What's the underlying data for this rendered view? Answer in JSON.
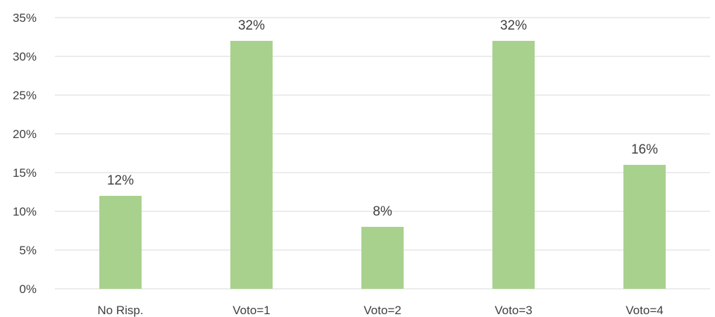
{
  "chart_data": {
    "type": "bar",
    "title": "",
    "xlabel": "",
    "ylabel": "",
    "categories": [
      "No Risp.",
      "Voto=1",
      "Voto=2",
      "Voto=3",
      "Voto=4"
    ],
    "values": [
      12,
      32,
      8,
      32,
      16
    ],
    "data_labels": [
      "12%",
      "32%",
      "8%",
      "32%",
      "16%"
    ],
    "ylim": [
      0,
      35
    ],
    "y_ticks": [
      0,
      5,
      10,
      15,
      20,
      25,
      30,
      35
    ],
    "y_tick_labels": [
      "0%",
      "5%",
      "10%",
      "15%",
      "20%",
      "25%",
      "30%",
      "35%"
    ],
    "grid": true,
    "legend": "none",
    "colors": {
      "bar": "#a9d18e",
      "grid": "#d9d9d9",
      "text": "#404040"
    }
  }
}
